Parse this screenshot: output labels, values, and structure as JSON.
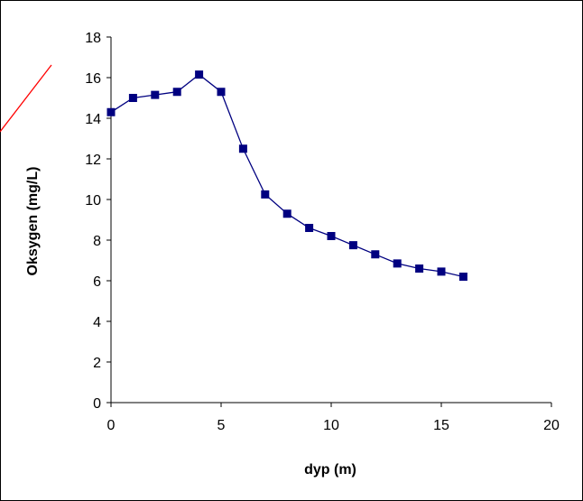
{
  "chart_data": {
    "type": "line",
    "title": "",
    "xlabel": "dyp (m)",
    "ylabel": "Oksygen (mg/L)",
    "xlim": [
      0,
      20
    ],
    "ylim": [
      0,
      18
    ],
    "x_ticks": [
      0,
      5,
      10,
      15,
      20
    ],
    "y_ticks": [
      0,
      2,
      4,
      6,
      8,
      10,
      12,
      14,
      16,
      18
    ],
    "grid": false,
    "legend": "none",
    "series": [
      {
        "marker": "square",
        "color": "#000080",
        "x": [
          0,
          1,
          2,
          3,
          4,
          5,
          6,
          7,
          8,
          9,
          10,
          11,
          12,
          13,
          14,
          15,
          16
        ],
        "y": [
          14.3,
          15.0,
          15.15,
          15.3,
          16.15,
          15.3,
          12.5,
          10.25,
          9.3,
          8.6,
          8.2,
          7.75,
          7.3,
          6.85,
          6.6,
          6.45,
          6.2
        ]
      }
    ]
  }
}
